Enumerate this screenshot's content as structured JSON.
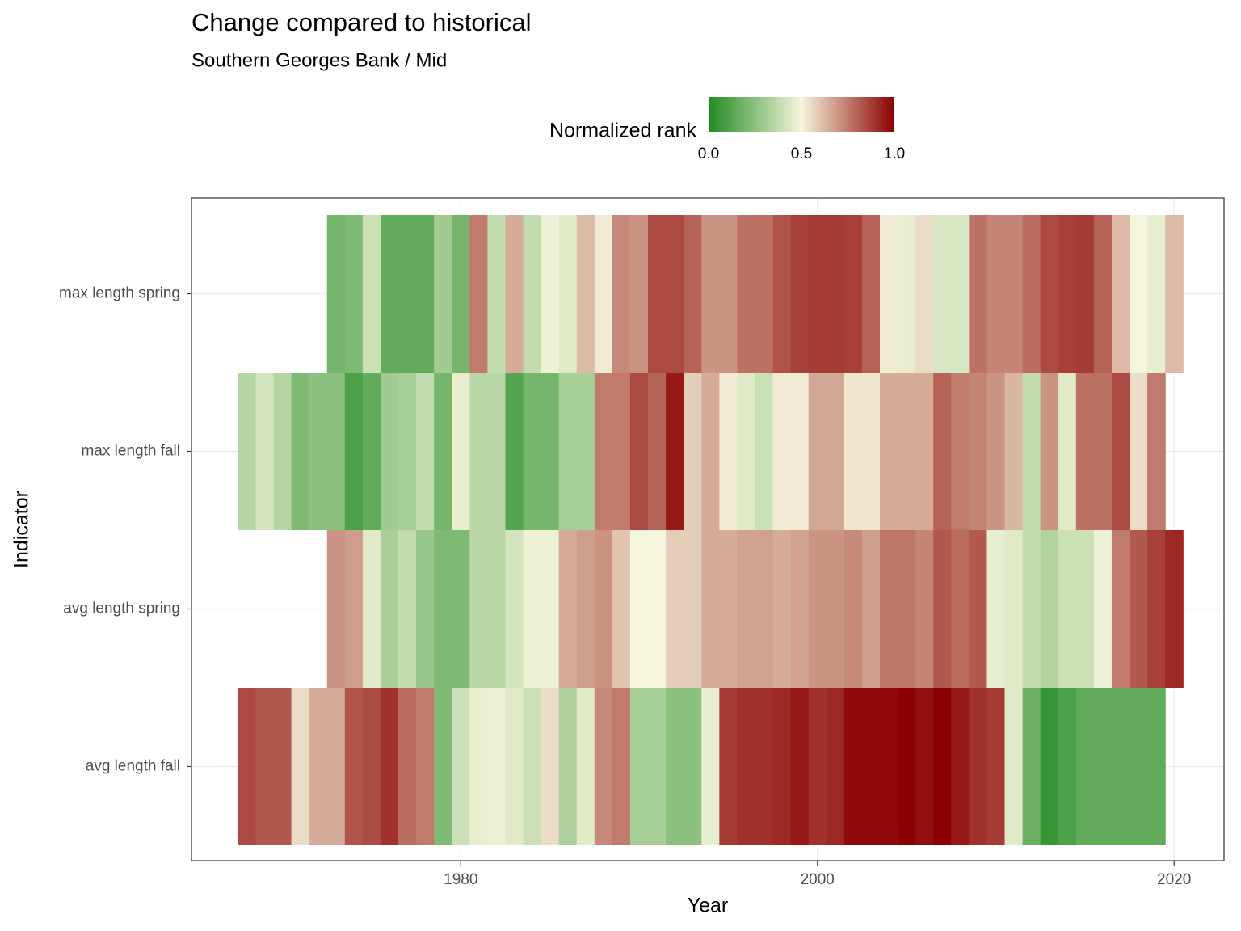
{
  "chart_data": {
    "type": "heatmap",
    "title": "Change compared to historical",
    "subtitle": "Southern Georges Bank / Mid",
    "x_label": "Year",
    "y_label": "Indicator",
    "legend_title": "Normalized rank",
    "colorscale": [
      "#228B22",
      "#F5F5DC",
      "#8B0000"
    ],
    "legend_ticks": [
      {
        "value": 0,
        "label": "0.0"
      },
      0.5,
      {
        "value": 1,
        "label": "1.0"
      }
    ],
    "xlim": [
      1964.9,
      2022.8
    ],
    "xticks": [
      1980,
      2000,
      2020
    ],
    "grid": true,
    "categories": [
      "max length spring",
      "max length fall",
      "avg length spring",
      "avg length fall"
    ],
    "series": [
      {
        "name": "max length spring",
        "x": [
          1973,
          1974,
          1975,
          1976,
          1977,
          1978,
          1979,
          1980,
          1981,
          1982,
          1983,
          1984,
          1985,
          1986,
          1987,
          1988,
          1989,
          1990,
          1991,
          1992,
          1993,
          1994,
          1995,
          1996,
          1997,
          1998,
          1999,
          2000,
          2001,
          2002,
          2003,
          2004,
          2005,
          2006,
          2007,
          2008,
          2009,
          2010,
          2011,
          2012,
          2013,
          2014,
          2015,
          2016,
          2017,
          2018,
          2019,
          2020
        ],
        "values": [
          0.2,
          0.22,
          0.4,
          0.15,
          0.15,
          0.15,
          0.3,
          0.2,
          0.75,
          0.38,
          0.65,
          0.38,
          0.48,
          0.45,
          0.62,
          0.52,
          0.72,
          0.7,
          0.85,
          0.85,
          0.8,
          0.7,
          0.7,
          0.77,
          0.77,
          0.83,
          0.87,
          0.88,
          0.88,
          0.87,
          0.8,
          0.52,
          0.47,
          0.55,
          0.43,
          0.43,
          0.77,
          0.73,
          0.73,
          0.78,
          0.85,
          0.87,
          0.88,
          0.8,
          0.62,
          0.5,
          0.47,
          0.62
        ]
      },
      {
        "name": "max length fall",
        "x": [
          1968,
          1969,
          1970,
          1971,
          1972,
          1973,
          1974,
          1975,
          1976,
          1977,
          1978,
          1979,
          1980,
          1981,
          1982,
          1983,
          1984,
          1985,
          1986,
          1987,
          1988,
          1989,
          1990,
          1991,
          1992,
          1993,
          1994,
          1995,
          1996,
          1997,
          1998,
          1999,
          2000,
          2001,
          2002,
          2003,
          2004,
          2005,
          2006,
          2007,
          2008,
          2009,
          2010,
          2011,
          2012,
          2013,
          2014,
          2015,
          2016,
          2017,
          2018,
          2019
        ],
        "values": [
          0.35,
          0.42,
          0.35,
          0.22,
          0.25,
          0.25,
          0.1,
          0.15,
          0.3,
          0.32,
          0.38,
          0.2,
          0.47,
          0.36,
          0.36,
          0.12,
          0.2,
          0.2,
          0.32,
          0.32,
          0.75,
          0.75,
          0.85,
          0.8,
          0.95,
          0.58,
          0.65,
          0.52,
          0.45,
          0.4,
          0.52,
          0.52,
          0.66,
          0.66,
          0.53,
          0.53,
          0.65,
          0.65,
          0.65,
          0.8,
          0.75,
          0.73,
          0.7,
          0.63,
          0.38,
          0.7,
          0.45,
          0.77,
          0.77,
          0.85,
          0.55,
          0.75
        ]
      },
      {
        "name": "avg length spring",
        "x": [
          1973,
          1974,
          1975,
          1976,
          1977,
          1978,
          1979,
          1980,
          1981,
          1982,
          1983,
          1984,
          1985,
          1986,
          1987,
          1988,
          1989,
          1990,
          1991,
          1992,
          1993,
          1994,
          1995,
          1996,
          1997,
          1998,
          1999,
          2000,
          2001,
          2002,
          2003,
          2004,
          2005,
          2006,
          2007,
          2008,
          2009,
          2010,
          2011,
          2012,
          2013,
          2014,
          2015,
          2016,
          2017,
          2018,
          2019,
          2020
        ],
        "values": [
          0.7,
          0.68,
          0.45,
          0.32,
          0.38,
          0.28,
          0.22,
          0.22,
          0.36,
          0.36,
          0.42,
          0.48,
          0.48,
          0.65,
          0.68,
          0.7,
          0.6,
          0.5,
          0.5,
          0.58,
          0.58,
          0.65,
          0.65,
          0.67,
          0.67,
          0.65,
          0.67,
          0.7,
          0.7,
          0.72,
          0.68,
          0.76,
          0.76,
          0.73,
          0.82,
          0.78,
          0.82,
          0.47,
          0.45,
          0.38,
          0.34,
          0.4,
          0.4,
          0.48,
          0.75,
          0.82,
          0.87,
          0.92
        ]
      },
      {
        "name": "avg length fall",
        "x": [
          1968,
          1969,
          1970,
          1971,
          1972,
          1973,
          1974,
          1975,
          1976,
          1977,
          1978,
          1979,
          1980,
          1981,
          1982,
          1983,
          1984,
          1985,
          1986,
          1987,
          1988,
          1989,
          1990,
          1991,
          1992,
          1993,
          1994,
          1995,
          1996,
          1997,
          1998,
          1999,
          2000,
          2001,
          2002,
          2003,
          2004,
          2005,
          2006,
          2007,
          2008,
          2009,
          2010,
          2011,
          2012,
          2013,
          2014,
          2015,
          2016,
          2017,
          2018,
          2019
        ],
        "values": [
          0.85,
          0.82,
          0.82,
          0.55,
          0.65,
          0.65,
          0.83,
          0.85,
          0.9,
          0.78,
          0.75,
          0.22,
          0.4,
          0.47,
          0.48,
          0.45,
          0.4,
          0.55,
          0.33,
          0.45,
          0.72,
          0.75,
          0.32,
          0.32,
          0.25,
          0.25,
          0.47,
          0.88,
          0.9,
          0.9,
          0.92,
          0.95,
          0.9,
          0.92,
          0.98,
          0.98,
          0.98,
          1.0,
          0.97,
          1.0,
          0.95,
          0.9,
          0.88,
          0.45,
          0.18,
          0.05,
          0.1,
          0.15,
          0.15,
          0.15,
          0.15,
          0.15
        ]
      }
    ]
  }
}
